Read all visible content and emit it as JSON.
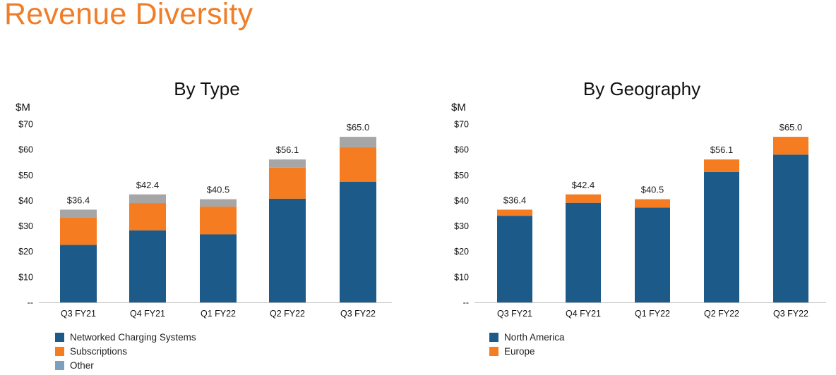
{
  "title": "Revenue Diversity",
  "colors": {
    "title": "#f07d28",
    "navy": "#1c5a8a",
    "orange": "#f57c20",
    "gray": "#a6a6a6",
    "other_swatch": "#7c9fbd"
  },
  "chart_data": [
    {
      "type": "bar",
      "stacked": true,
      "title": "By Type",
      "ylabel": "$M",
      "ylim": [
        0,
        70
      ],
      "yticks": [
        "--",
        "$10",
        "$20",
        "$30",
        "$40",
        "$50",
        "$60",
        "$70"
      ],
      "categories": [
        "Q3 FY21",
        "Q4 FY21",
        "Q1 FY22",
        "Q2 FY22",
        "Q3 FY22"
      ],
      "totals": [
        "$36.4",
        "$42.4",
        "$40.5",
        "$56.1",
        "$65.0"
      ],
      "series": [
        {
          "name": "Networked Charging Systems",
          "values": [
            22.6,
            28.3,
            26.7,
            40.7,
            47.4
          ],
          "color": "#1c5a8a"
        },
        {
          "name": "Subscriptions",
          "values": [
            10.8,
            10.7,
            10.9,
            12.2,
            13.5
          ],
          "color": "#f57c20"
        },
        {
          "name": "Other",
          "values": [
            3.0,
            3.4,
            2.9,
            3.2,
            4.1
          ],
          "color": "#a6a6a6"
        }
      ],
      "legend": [
        {
          "label": "Networked Charging Systems",
          "color": "#1c5a8a"
        },
        {
          "label": "Subscriptions",
          "color": "#f57c20"
        },
        {
          "label": "Other",
          "color": "#7c9fbd"
        }
      ]
    },
    {
      "type": "bar",
      "stacked": true,
      "title": "By Geography",
      "ylabel": "$M",
      "ylim": [
        0,
        70
      ],
      "yticks": [
        "--",
        "$10",
        "$20",
        "$30",
        "$40",
        "$50",
        "$60",
        "$70"
      ],
      "categories": [
        "Q3 FY21",
        "Q4 FY21",
        "Q1 FY22",
        "Q2 FY22",
        "Q3 FY22"
      ],
      "totals": [
        "$36.4",
        "$42.4",
        "$40.5",
        "$56.1",
        "$65.0"
      ],
      "series": [
        {
          "name": "North America",
          "values": [
            34.0,
            39.1,
            37.2,
            51.2,
            58.0
          ],
          "color": "#1c5a8a"
        },
        {
          "name": "Europe",
          "values": [
            2.4,
            3.3,
            3.3,
            4.9,
            7.0
          ],
          "color": "#f57c20"
        }
      ],
      "legend": [
        {
          "label": "North America",
          "color": "#1c5a8a"
        },
        {
          "label": "Europe",
          "color": "#f57c20"
        }
      ]
    }
  ]
}
